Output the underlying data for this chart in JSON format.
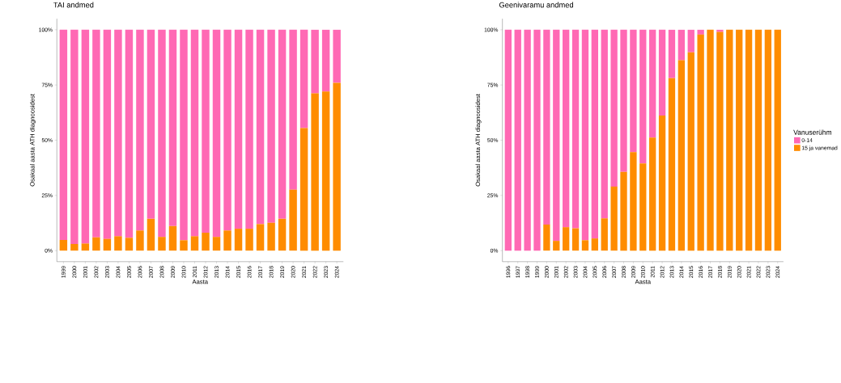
{
  "chart_data": [
    {
      "type": "bar",
      "title": "TAI andmed",
      "xlabel": "Aasta",
      "ylabel": "Osakaal aasta ATH diagnoosidest",
      "stacked": true,
      "categories": [
        "1999",
        "2000",
        "2001",
        "2002",
        "2003",
        "2004",
        "2005",
        "2006",
        "2007",
        "2008",
        "2009",
        "2010",
        "2011",
        "2012",
        "2013",
        "2014",
        "2015",
        "2016",
        "2017",
        "2018",
        "2019",
        "2020",
        "2021",
        "2022",
        "2023",
        "2024"
      ],
      "ylim": [
        -5,
        105
      ],
      "yticks": [
        {
          "value": 0,
          "label": "0%"
        },
        {
          "value": 25,
          "label": "25%"
        },
        {
          "value": 50,
          "label": "50%"
        },
        {
          "value": 75,
          "label": "75%"
        },
        {
          "value": 100,
          "label": "100%"
        }
      ],
      "series": [
        {
          "color": "#ff8c00",
          "values": [
            4.8,
            3.0,
            3.2,
            6.0,
            5.3,
            6.5,
            5.8,
            9.1,
            14.4,
            6.2,
            11.1,
            4.7,
            6.5,
            8.1,
            6.2,
            9.1,
            9.9,
            9.9,
            12.0,
            12.6,
            14.4,
            27.6,
            55.5,
            71.2,
            72.0,
            76.0
          ]
        },
        {
          "color": "#ff69b4",
          "values": [
            95.2,
            97.0,
            96.8,
            94.0,
            94.7,
            93.5,
            94.2,
            90.9,
            85.6,
            93.8,
            88.9,
            95.3,
            93.5,
            91.9,
            93.8,
            90.9,
            90.1,
            90.1,
            88.0,
            87.4,
            85.6,
            72.4,
            44.5,
            28.8,
            28.0,
            24.0
          ]
        }
      ]
    },
    {
      "type": "bar",
      "title": "Geenivaramu andmed",
      "xlabel": "Aasta",
      "ylabel": "Osakaal aasta ATH diagnoosidest",
      "stacked": true,
      "legend": "right",
      "legend_title": "Vanuserühm",
      "categories": [
        "1996",
        "1997",
        "1998",
        "1999",
        "2000",
        "2001",
        "2002",
        "2003",
        "2004",
        "2005",
        "2006",
        "2007",
        "2008",
        "2009",
        "2010",
        "2011",
        "2012",
        "2013",
        "2014",
        "2015",
        "2016",
        "2017",
        "2018",
        "2019",
        "2020",
        "2021",
        "2022",
        "2023",
        "2024"
      ],
      "ylim": [
        -5,
        105
      ],
      "yticks": [
        {
          "value": 0,
          "label": "0%"
        },
        {
          "value": 25,
          "label": "25%"
        },
        {
          "value": 50,
          "label": "50%"
        },
        {
          "value": 75,
          "label": "75%"
        },
        {
          "value": 100,
          "label": "100%"
        }
      ],
      "series": [
        {
          "name": "15 ja vanemad",
          "color": "#ff8c00",
          "values": [
            0,
            0,
            0,
            0,
            11.8,
            4.4,
            10.6,
            10.1,
            4.7,
            5.5,
            14.6,
            29.0,
            35.6,
            44.6,
            39.5,
            51.2,
            61.2,
            78.1,
            86.2,
            89.8,
            97.8,
            100,
            99.0,
            100,
            100,
            100,
            100,
            100,
            100
          ]
        },
        {
          "name": "0-14",
          "color": "#ff69b4",
          "values": [
            100,
            100,
            100,
            100,
            88.2,
            95.6,
            89.4,
            89.9,
            95.3,
            94.5,
            85.4,
            71.0,
            64.4,
            55.4,
            60.5,
            48.8,
            38.8,
            21.9,
            13.8,
            10.2,
            2.2,
            0,
            1.0,
            0,
            0,
            0,
            0,
            0,
            0
          ]
        }
      ]
    }
  ]
}
